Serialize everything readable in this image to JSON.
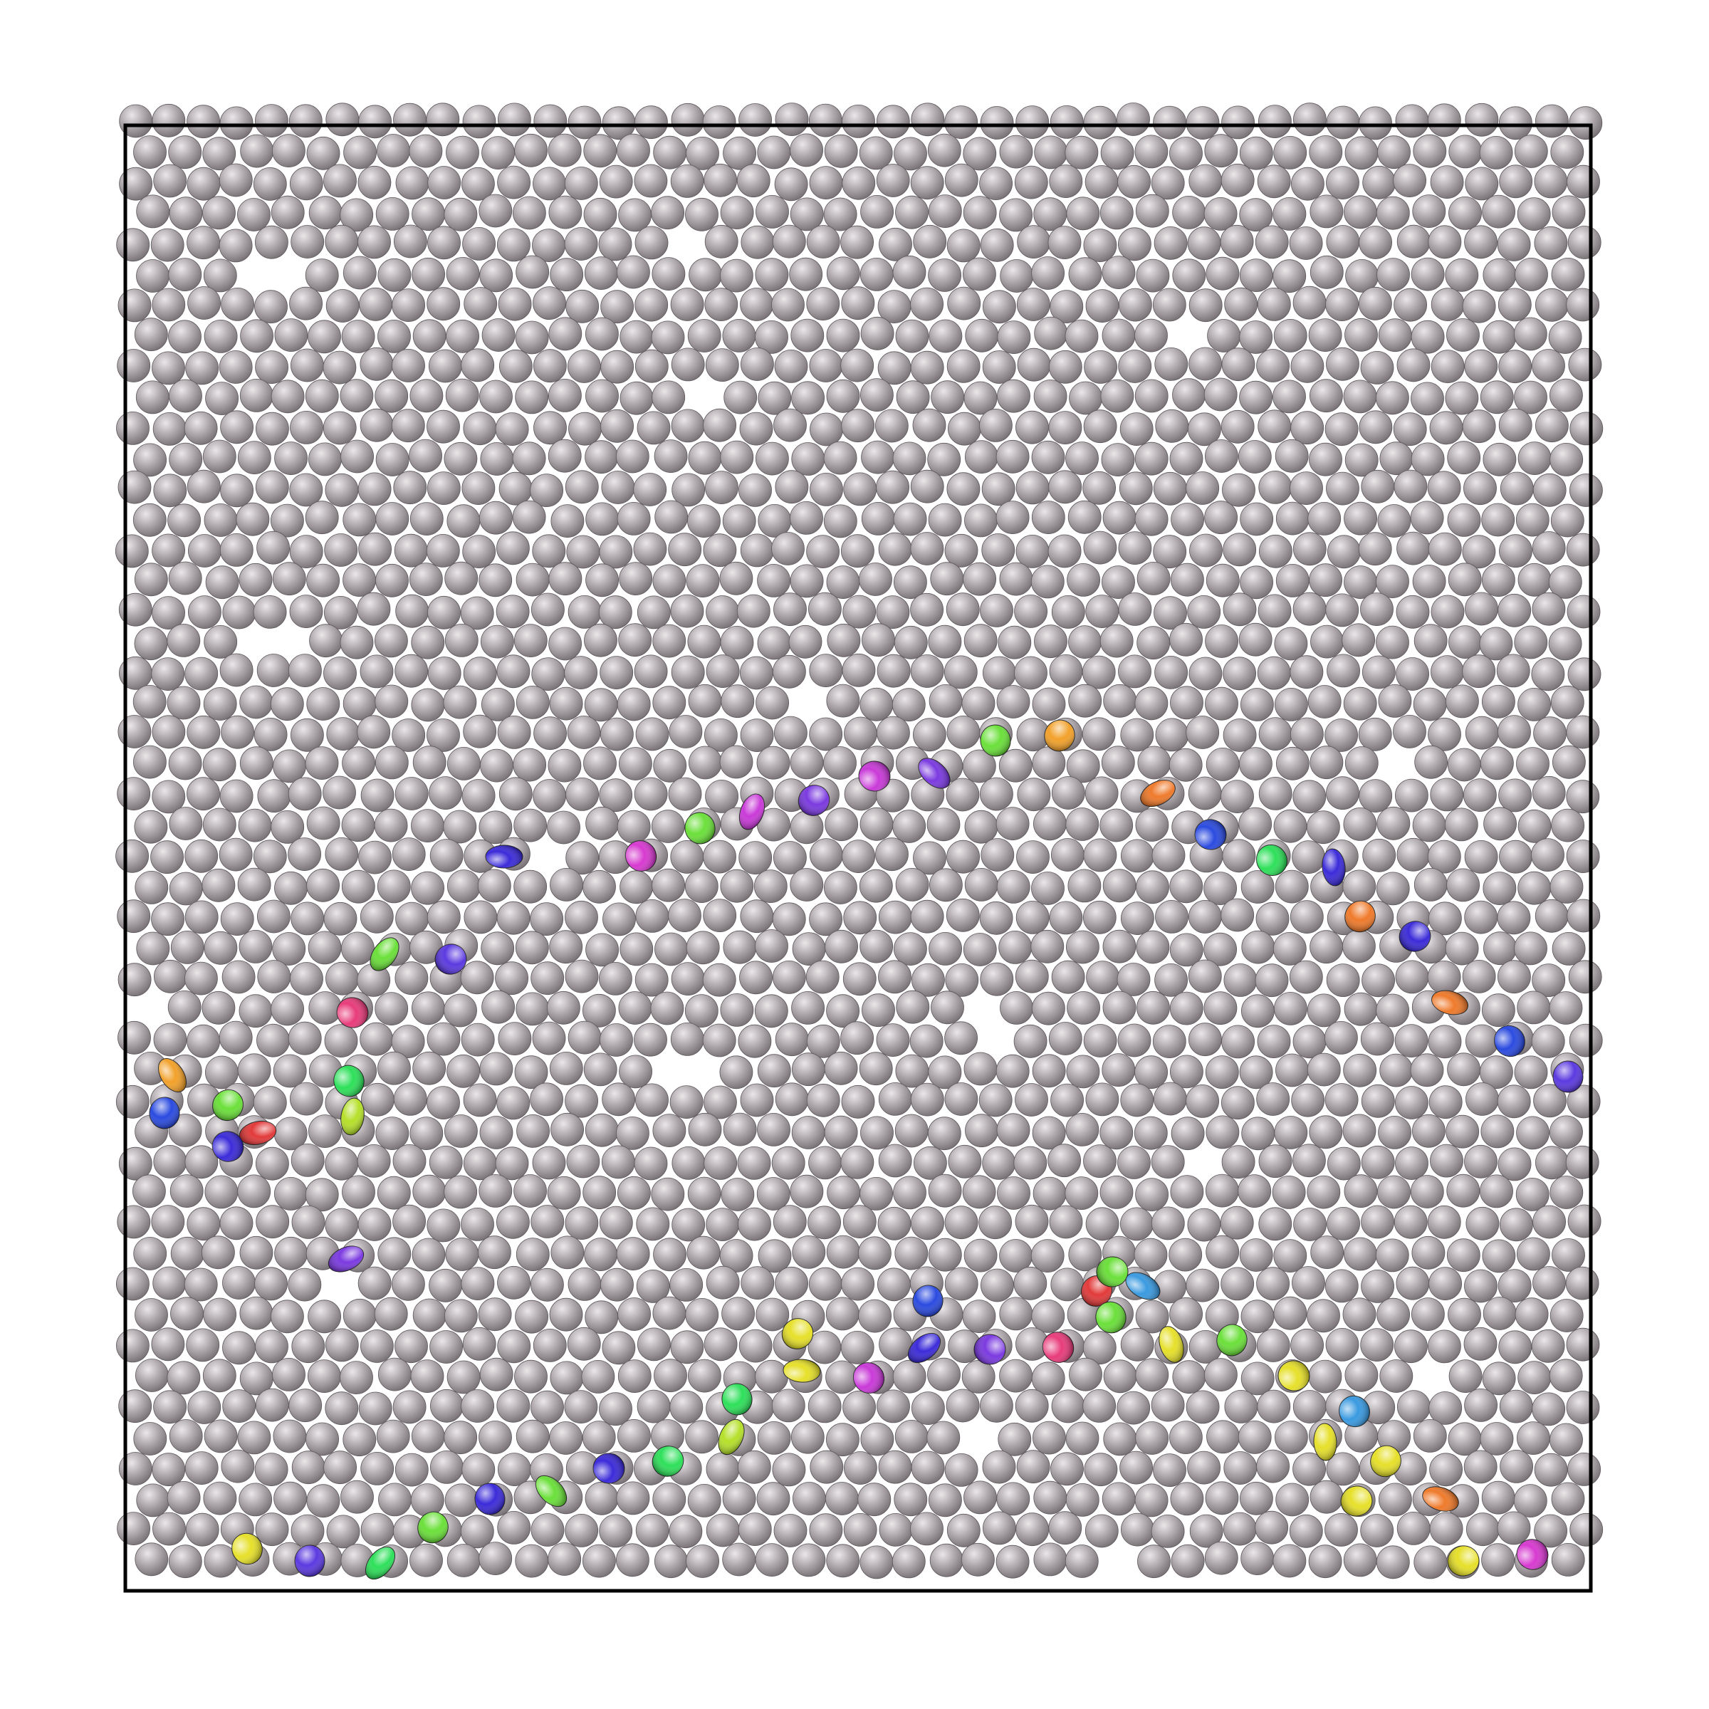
{
  "figure": {
    "kind": "hard-disk packing simulation snapshot",
    "background_color": "#ffffff",
    "frame_color": "#000000",
    "particle_base_color": "#a8a2a6",
    "particle_highlight_color": "#e6e2e4",
    "particle_shadow_color": "#6a6468",
    "defect_palette": [
      "#3b2bd9",
      "#5b3ae0",
      "#7b3ae0",
      "#c93ad8",
      "#d73ad0",
      "#e83c7a",
      "#e23a3a",
      "#ef7a2b",
      "#f2a12a",
      "#e6e02a",
      "#b5e02a",
      "#6be03a",
      "#2ee05a",
      "#3a9ae0",
      "#2b4be0"
    ]
  }
}
